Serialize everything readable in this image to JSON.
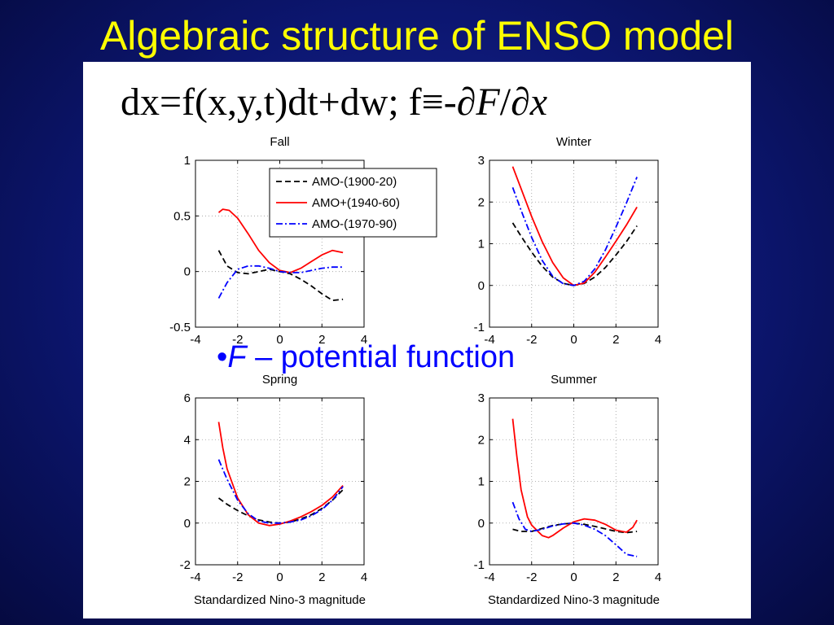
{
  "slide": {
    "title": "Algebraic structure of ENSO model",
    "equation_main": "dx=f(x,y,t)dt+dw; f≡-∂",
    "equation_F": "F",
    "equation_slash": "/∂",
    "equation_x": "x",
    "bullet_marker": "•",
    "bullet_symbol": "F",
    "bullet_text": " – potential function",
    "colors": {
      "background": "#0c1670",
      "title": "#ffff00",
      "bullet": "#0000ff"
    }
  },
  "chart_data": [
    {
      "type": "line",
      "title": "Fall",
      "xlabel": "",
      "ylabel": "",
      "xlim": [
        -4,
        4
      ],
      "ylim": [
        -0.5,
        1
      ],
      "xticks": [
        -4,
        -2,
        0,
        2,
        4
      ],
      "yticks": [
        -0.5,
        0,
        0.5,
        1
      ],
      "ytick_labels": [
        "-0.5",
        "0",
        "0.5",
        "1"
      ],
      "grid": true,
      "legend": "top-right",
      "series": [
        {
          "name": "AMO-(1900-20)",
          "color": "#000000",
          "dash": "dashed",
          "x": [
            -2.9,
            -2.5,
            -2.0,
            -1.5,
            -1.0,
            -0.5,
            0,
            0.5,
            1.0,
            1.5,
            2.0,
            2.5,
            3.0
          ],
          "y": [
            0.19,
            0.05,
            -0.01,
            -0.02,
            0.0,
            0.02,
            0.0,
            -0.02,
            -0.07,
            -0.13,
            -0.2,
            -0.26,
            -0.25
          ]
        },
        {
          "name": "AMO+(1940-60)",
          "color": "#ff0000",
          "dash": "solid",
          "x": [
            -2.9,
            -2.7,
            -2.4,
            -2.0,
            -1.5,
            -1.0,
            -0.5,
            0,
            0.5,
            1.0,
            1.5,
            2.0,
            2.5,
            3.0
          ],
          "y": [
            0.53,
            0.56,
            0.55,
            0.48,
            0.34,
            0.19,
            0.08,
            0.01,
            -0.01,
            0.03,
            0.09,
            0.15,
            0.19,
            0.17
          ]
        },
        {
          "name": "AMO-(1970-90)",
          "color": "#0000ff",
          "dash": "dashdot",
          "x": [
            -2.9,
            -2.5,
            -2.0,
            -1.5,
            -1.0,
            -0.5,
            0,
            0.5,
            1.0,
            1.5,
            2.0,
            2.5,
            3.0
          ],
          "y": [
            -0.24,
            -0.1,
            0.02,
            0.05,
            0.05,
            0.03,
            0.0,
            -0.01,
            -0.01,
            0.01,
            0.03,
            0.04,
            0.04
          ]
        }
      ]
    },
    {
      "type": "line",
      "title": "Winter",
      "xlabel": "",
      "ylabel": "",
      "xlim": [
        -4,
        4
      ],
      "ylim": [
        -1,
        3
      ],
      "xticks": [
        -4,
        -2,
        0,
        2,
        4
      ],
      "yticks": [
        -1,
        0,
        1,
        2,
        3
      ],
      "ytick_labels": [
        "-1",
        "0",
        "1",
        "2",
        "3"
      ],
      "grid": true,
      "legend": "",
      "series": [
        {
          "name": "AMO-(1900-20)",
          "color": "#000000",
          "dash": "dashed",
          "x": [
            -2.9,
            -2.5,
            -2.0,
            -1.5,
            -1.0,
            -0.5,
            0,
            0.5,
            1.0,
            1.5,
            2.0,
            2.5,
            3.0
          ],
          "y": [
            1.5,
            1.18,
            0.8,
            0.46,
            0.2,
            0.05,
            0.0,
            0.05,
            0.2,
            0.43,
            0.73,
            1.05,
            1.43
          ]
        },
        {
          "name": "AMO+(1940-60)",
          "color": "#ff0000",
          "dash": "solid",
          "x": [
            -2.9,
            -2.5,
            -2.0,
            -1.5,
            -1.0,
            -0.5,
            0,
            0.5,
            1.0,
            1.5,
            2.0,
            2.5,
            3.0
          ],
          "y": [
            2.85,
            2.32,
            1.65,
            1.05,
            0.55,
            0.18,
            0.0,
            0.06,
            0.32,
            0.68,
            1.06,
            1.45,
            1.88
          ]
        },
        {
          "name": "AMO-(1970-90)",
          "color": "#0000ff",
          "dash": "dashdot",
          "x": [
            -2.9,
            -2.5,
            -2.0,
            -1.5,
            -1.0,
            -0.5,
            0,
            0.5,
            1.0,
            1.5,
            2.0,
            2.5,
            3.0
          ],
          "y": [
            2.35,
            1.8,
            1.15,
            0.6,
            0.22,
            0.04,
            0.0,
            0.1,
            0.4,
            0.85,
            1.4,
            1.98,
            2.6
          ]
        }
      ]
    },
    {
      "type": "line",
      "title": "Spring",
      "xlabel": "Standardized Nino-3 magnitude",
      "ylabel": "",
      "xlim": [
        -4,
        4
      ],
      "ylim": [
        -2,
        6
      ],
      "xticks": [
        -4,
        -2,
        0,
        2,
        4
      ],
      "yticks": [
        -2,
        0,
        2,
        4,
        6
      ],
      "ytick_labels": [
        "-2",
        "0",
        "2",
        "4",
        "6"
      ],
      "grid": true,
      "legend": "",
      "series": [
        {
          "name": "AMO-(1900-20)",
          "color": "#000000",
          "dash": "dashed",
          "x": [
            -2.9,
            -2.5,
            -2.0,
            -1.5,
            -1.0,
            -0.5,
            0,
            0.5,
            1.0,
            1.5,
            2.0,
            2.5,
            3.0
          ],
          "y": [
            1.2,
            0.9,
            0.6,
            0.35,
            0.15,
            0.05,
            0.0,
            0.05,
            0.2,
            0.4,
            0.7,
            1.1,
            1.6
          ]
        },
        {
          "name": "AMO+(1940-60)",
          "color": "#ff0000",
          "dash": "solid",
          "x": [
            -2.9,
            -2.7,
            -2.5,
            -2.0,
            -1.5,
            -1.0,
            -0.5,
            0,
            0.5,
            1.0,
            1.5,
            2.0,
            2.5,
            3.0
          ],
          "y": [
            4.85,
            3.6,
            2.6,
            1.2,
            0.4,
            0.0,
            -0.12,
            -0.05,
            0.1,
            0.3,
            0.55,
            0.85,
            1.25,
            1.8
          ]
        },
        {
          "name": "AMO-(1970-90)",
          "color": "#0000ff",
          "dash": "dashdot",
          "x": [
            -2.9,
            -2.5,
            -2.0,
            -1.5,
            -1.0,
            -0.5,
            0,
            0.5,
            1.0,
            1.5,
            2.0,
            2.5,
            3.0
          ],
          "y": [
            3.05,
            2.1,
            1.1,
            0.45,
            0.1,
            0.0,
            0.0,
            0.05,
            0.15,
            0.35,
            0.65,
            1.1,
            1.75
          ]
        }
      ]
    },
    {
      "type": "line",
      "title": "Summer",
      "xlabel": "Standardized Nino-3 magnitude",
      "ylabel": "",
      "xlim": [
        -4,
        4
      ],
      "ylim": [
        -1,
        3
      ],
      "xticks": [
        -4,
        -2,
        0,
        2,
        4
      ],
      "yticks": [
        -1,
        0,
        1,
        2,
        3
      ],
      "ytick_labels": [
        "-1",
        "0",
        "1",
        "2",
        "3"
      ],
      "grid": true,
      "legend": "",
      "series": [
        {
          "name": "AMO-(1900-20)",
          "color": "#000000",
          "dash": "dashed",
          "x": [
            -2.9,
            -2.5,
            -2.0,
            -1.5,
            -1.0,
            -0.5,
            0,
            0.5,
            1.0,
            1.5,
            2.0,
            2.5,
            3.0
          ],
          "y": [
            -0.15,
            -0.2,
            -0.2,
            -0.13,
            -0.06,
            -0.02,
            0.0,
            -0.03,
            -0.08,
            -0.14,
            -0.2,
            -0.23,
            -0.2
          ]
        },
        {
          "name": "AMO+(1940-60)",
          "color": "#ff0000",
          "dash": "solid",
          "x": [
            -2.9,
            -2.7,
            -2.5,
            -2.2,
            -2.0,
            -1.5,
            -1.2,
            -1.0,
            -0.5,
            0,
            0.5,
            1.0,
            1.5,
            2.0,
            2.5,
            2.8,
            3.0
          ],
          "y": [
            2.5,
            1.6,
            0.8,
            0.15,
            -0.05,
            -0.3,
            -0.35,
            -0.3,
            -0.12,
            0.03,
            0.1,
            0.07,
            -0.03,
            -0.17,
            -0.22,
            -0.1,
            0.07
          ]
        },
        {
          "name": "AMO-(1970-90)",
          "color": "#0000ff",
          "dash": "dashdot",
          "x": [
            -2.9,
            -2.6,
            -2.3,
            -2.0,
            -1.5,
            -1.0,
            -0.5,
            0,
            0.5,
            1.0,
            1.5,
            2.0,
            2.5,
            3.0
          ],
          "y": [
            0.5,
            0.1,
            -0.15,
            -0.2,
            -0.15,
            -0.07,
            -0.02,
            0.0,
            -0.05,
            -0.15,
            -0.3,
            -0.52,
            -0.75,
            -0.8
          ]
        }
      ]
    }
  ]
}
